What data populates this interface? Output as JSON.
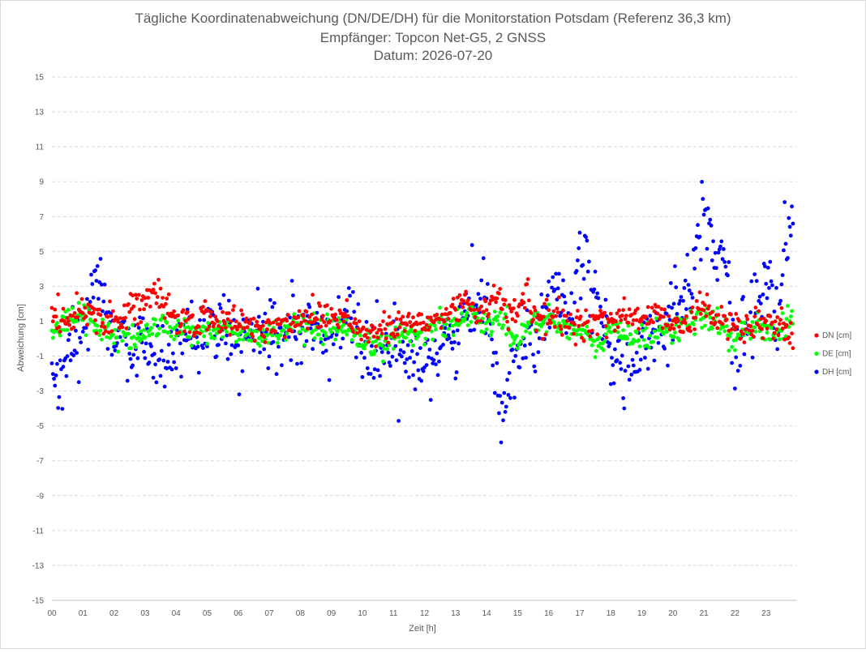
{
  "chart_data": {
    "type": "scatter",
    "title_lines": [
      "Tägliche Koordinatenabweichung (DN/DE/DH) für die Monitorstation Potsdam (Referenz 36,3 km)",
      "Empfänger: Topcon Net-G5, 2 GNSS",
      "Datum: 2026-07-20"
    ],
    "xlabel": "Zeit [h]",
    "ylabel": "Abweichung [cm]",
    "x_ticks": [
      "00",
      "01",
      "02",
      "03",
      "04",
      "05",
      "06",
      "07",
      "08",
      "09",
      "10",
      "11",
      "12",
      "13",
      "14",
      "15",
      "16",
      "17",
      "18",
      "19",
      "20",
      "21",
      "22",
      "23"
    ],
    "xlim": [
      0,
      24
    ],
    "ylim": [
      -15,
      15
    ],
    "y_ticks": [
      15,
      13,
      11,
      9,
      7,
      5,
      3,
      1,
      -1,
      -3,
      -5,
      -7,
      -9,
      -11,
      -13,
      -15
    ],
    "grid": "horizontal dashed",
    "legend_position": "right",
    "sample_interval_min": 2,
    "series": [
      {
        "name": "DN [cm]",
        "color": "#ff0000",
        "points": [
          [
            0.0,
            1.5
          ],
          [
            0.5,
            1.0
          ],
          [
            1.0,
            1.8
          ],
          [
            1.5,
            1.3
          ],
          [
            2.0,
            0.9
          ],
          [
            2.5,
            1.8
          ],
          [
            3.0,
            2.2
          ],
          [
            3.3,
            2.5
          ],
          [
            3.7,
            1.6
          ],
          [
            4.0,
            1.0
          ],
          [
            4.5,
            1.0
          ],
          [
            5.0,
            1.1
          ],
          [
            5.5,
            1.0
          ],
          [
            6.0,
            0.9
          ],
          [
            6.5,
            0.7
          ],
          [
            7.0,
            0.6
          ],
          [
            7.5,
            0.8
          ],
          [
            8.0,
            1.2
          ],
          [
            8.5,
            1.4
          ],
          [
            9.0,
            1.3
          ],
          [
            9.5,
            1.4
          ],
          [
            10.0,
            0.4
          ],
          [
            10.5,
            0.2
          ],
          [
            11.0,
            0.7
          ],
          [
            11.5,
            0.9
          ],
          [
            12.0,
            0.8
          ],
          [
            12.5,
            1.2
          ],
          [
            13.0,
            1.7
          ],
          [
            13.3,
            2.3
          ],
          [
            13.7,
            1.5
          ],
          [
            14.0,
            2.0
          ],
          [
            14.3,
            2.4
          ],
          [
            14.7,
            1.3
          ],
          [
            15.0,
            1.7
          ],
          [
            15.3,
            2.5
          ],
          [
            15.5,
            1.3
          ],
          [
            16.0,
            1.1
          ],
          [
            16.5,
            1.0
          ],
          [
            17.0,
            0.8
          ],
          [
            17.5,
            0.9
          ],
          [
            18.0,
            1.2
          ],
          [
            18.5,
            1.3
          ],
          [
            19.0,
            1.2
          ],
          [
            19.5,
            1.3
          ],
          [
            20.0,
            1.1
          ],
          [
            20.5,
            0.9
          ],
          [
            21.0,
            1.8
          ],
          [
            21.5,
            1.3
          ],
          [
            22.0,
            0.6
          ],
          [
            22.5,
            0.4
          ],
          [
            23.0,
            1.0
          ],
          [
            23.5,
            0.7
          ],
          [
            23.8,
            -0.2
          ]
        ]
      },
      {
        "name": "DE [cm]",
        "color": "#00ff00",
        "points": [
          [
            0.0,
            0.2
          ],
          [
            0.5,
            1.0
          ],
          [
            1.0,
            1.6
          ],
          [
            1.5,
            0.6
          ],
          [
            2.0,
            0.2
          ],
          [
            2.5,
            -0.1
          ],
          [
            3.0,
            0.4
          ],
          [
            3.5,
            0.7
          ],
          [
            4.0,
            0.6
          ],
          [
            4.5,
            0.3
          ],
          [
            5.0,
            0.4
          ],
          [
            5.5,
            0.5
          ],
          [
            6.0,
            0.3
          ],
          [
            6.5,
            0.1
          ],
          [
            7.0,
            0.2
          ],
          [
            7.5,
            0.6
          ],
          [
            8.0,
            0.5
          ],
          [
            8.5,
            0.4
          ],
          [
            9.0,
            0.5
          ],
          [
            9.5,
            0.4
          ],
          [
            10.0,
            -0.5
          ],
          [
            10.5,
            -0.3
          ],
          [
            11.0,
            0.1
          ],
          [
            11.5,
            0.2
          ],
          [
            12.0,
            0.5
          ],
          [
            12.5,
            0.9
          ],
          [
            13.0,
            1.0
          ],
          [
            13.5,
            1.4
          ],
          [
            14.0,
            0.9
          ],
          [
            14.5,
            1.1
          ],
          [
            15.0,
            -0.2
          ],
          [
            15.3,
            1.0
          ],
          [
            15.5,
            0.6
          ],
          [
            16.0,
            1.2
          ],
          [
            16.5,
            0.7
          ],
          [
            17.0,
            0.5
          ],
          [
            17.5,
            -0.6
          ],
          [
            18.0,
            0.6
          ],
          [
            18.5,
            0.2
          ],
          [
            19.0,
            0.0
          ],
          [
            19.5,
            0.5
          ],
          [
            20.0,
            0.5
          ],
          [
            20.5,
            0.9
          ],
          [
            21.0,
            1.1
          ],
          [
            21.5,
            0.8
          ],
          [
            22.0,
            0.0
          ],
          [
            22.5,
            0.6
          ],
          [
            23.0,
            0.5
          ],
          [
            23.5,
            0.6
          ],
          [
            23.8,
            0.9
          ]
        ]
      },
      {
        "name": "DH [cm]",
        "color": "#0000ff",
        "points": [
          [
            0.0,
            -2.0
          ],
          [
            0.1,
            -3.0
          ],
          [
            0.2,
            -3.8
          ],
          [
            0.3,
            -2.5
          ],
          [
            0.5,
            -1.2
          ],
          [
            0.7,
            -0.5
          ],
          [
            1.0,
            0.5
          ],
          [
            1.3,
            2.8
          ],
          [
            1.5,
            3.5
          ],
          [
            1.7,
            2.0
          ],
          [
            2.0,
            0.5
          ],
          [
            2.5,
            -1.0
          ],
          [
            3.0,
            -0.3
          ],
          [
            3.5,
            -1.3
          ],
          [
            4.0,
            -0.6
          ],
          [
            4.5,
            0.8
          ],
          [
            5.0,
            0.5
          ],
          [
            5.5,
            0.2
          ],
          [
            6.0,
            -0.5
          ],
          [
            6.5,
            0.5
          ],
          [
            7.0,
            -0.4
          ],
          [
            7.5,
            0.5
          ],
          [
            8.0,
            0.2
          ],
          [
            8.5,
            0.4
          ],
          [
            9.0,
            0.0
          ],
          [
            9.5,
            2.0
          ],
          [
            10.0,
            -0.6
          ],
          [
            10.5,
            -1.0
          ],
          [
            11.0,
            -0.8
          ],
          [
            11.5,
            -1.0
          ],
          [
            12.0,
            -0.9
          ],
          [
            12.5,
            -0.6
          ],
          [
            13.0,
            0.1
          ],
          [
            13.5,
            1.8
          ],
          [
            14.0,
            2.6
          ],
          [
            14.3,
            -2.0
          ],
          [
            14.5,
            -3.8
          ],
          [
            14.7,
            -2.5
          ],
          [
            15.0,
            -1.0
          ],
          [
            15.5,
            0.3
          ],
          [
            16.0,
            2.5
          ],
          [
            16.3,
            3.8
          ],
          [
            16.5,
            1.2
          ],
          [
            17.0,
            4.3
          ],
          [
            17.2,
            5.5
          ],
          [
            17.5,
            1.8
          ],
          [
            18.0,
            -0.8
          ],
          [
            18.5,
            -1.6
          ],
          [
            19.0,
            -1.2
          ],
          [
            19.5,
            0.6
          ],
          [
            20.0,
            1.6
          ],
          [
            20.5,
            3.5
          ],
          [
            20.8,
            5.0
          ],
          [
            21.0,
            8.5
          ],
          [
            21.2,
            6.5
          ],
          [
            21.4,
            3.5
          ],
          [
            21.6,
            5.2
          ],
          [
            22.0,
            -0.6
          ],
          [
            22.5,
            1.2
          ],
          [
            23.0,
            3.2
          ],
          [
            23.3,
            1.5
          ],
          [
            23.5,
            2.5
          ],
          [
            23.7,
            6.0
          ],
          [
            23.9,
            6.8
          ]
        ]
      }
    ]
  }
}
